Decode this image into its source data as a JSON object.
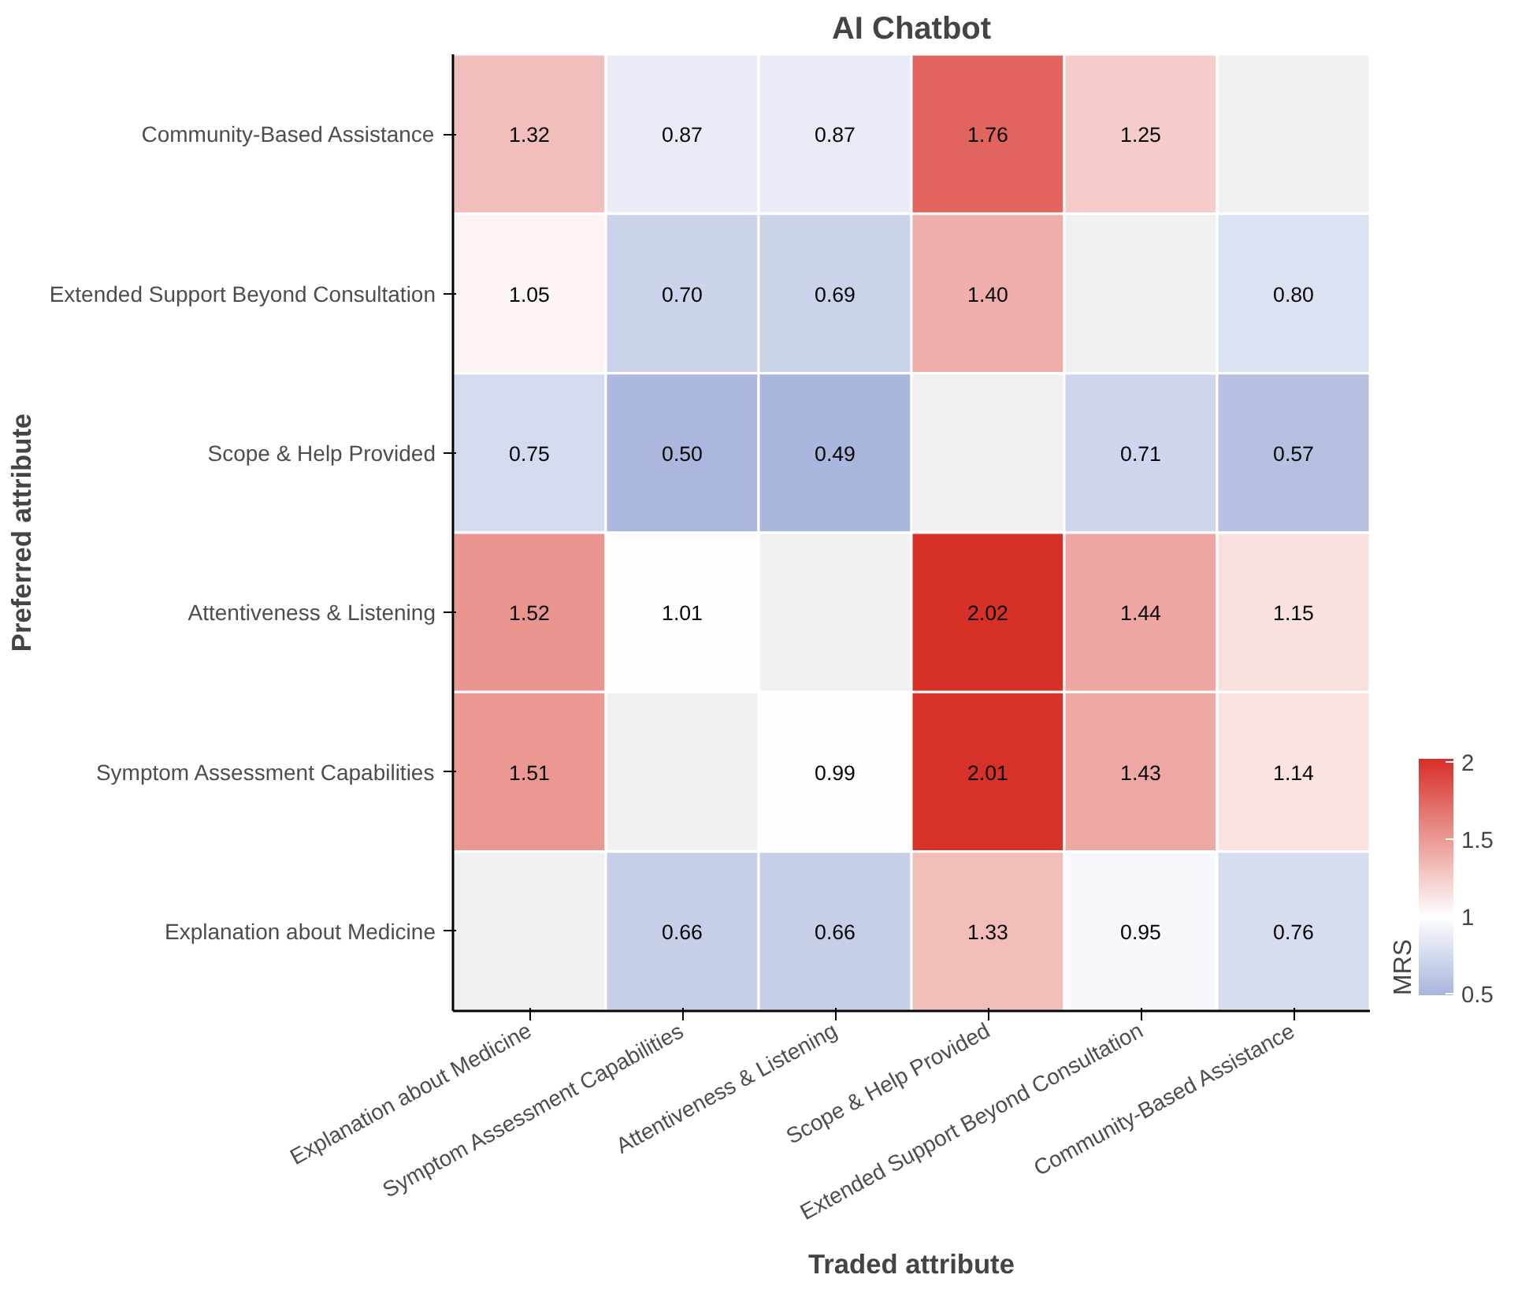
{
  "chart_data": {
    "type": "heatmap",
    "title": "AI Chatbot",
    "xlabel": "Traded attribute",
    "ylabel": "Preferred attribute",
    "clabel": "MRS",
    "categories": [
      "Explanation about Medicine",
      "Symptom Assessment Capabilities",
      "Attentiveness & Listening",
      "Scope & Help Provided",
      "Extended Support Beyond Consultation",
      "Community-Based Assistance"
    ],
    "y_categories": [
      "Community-Based Assistance",
      "Extended Support Beyond Consultation",
      "Scope & Help Provided",
      "Attentiveness & Listening",
      "Symptom Assessment Capabilities",
      "Explanation about Medicine"
    ],
    "cells": [
      [
        1.32,
        0.87,
        0.87,
        1.76,
        1.25,
        null
      ],
      [
        1.05,
        0.7,
        0.69,
        1.4,
        null,
        0.8
      ],
      [
        0.75,
        0.5,
        0.49,
        null,
        0.71,
        0.57
      ],
      [
        1.52,
        1.01,
        null,
        2.02,
        1.44,
        1.15
      ],
      [
        1.51,
        null,
        0.99,
        2.01,
        1.43,
        1.14
      ],
      [
        null,
        0.66,
        0.66,
        1.33,
        0.95,
        0.76
      ]
    ],
    "cell_labels": [
      [
        "1.32",
        "0.87",
        "0.87",
        "1.76",
        "1.25",
        null
      ],
      [
        "1.05",
        "0.70",
        "0.69",
        "1.40",
        null,
        "0.80"
      ],
      [
        "0.75",
        "0.50",
        "0.49",
        null,
        "0.71",
        "0.57"
      ],
      [
        "1.52",
        "1.01",
        null,
        "2.02",
        "1.44",
        "1.15"
      ],
      [
        "1.51",
        null,
        "0.99",
        "2.01",
        "1.43",
        "1.14"
      ],
      [
        null,
        "0.66",
        "0.66",
        "1.33",
        "0.95",
        "0.76"
      ]
    ],
    "clim": [
      0.49,
      2.02
    ],
    "cticks": [
      0.5,
      1.0,
      1.5,
      2.0
    ]
  }
}
